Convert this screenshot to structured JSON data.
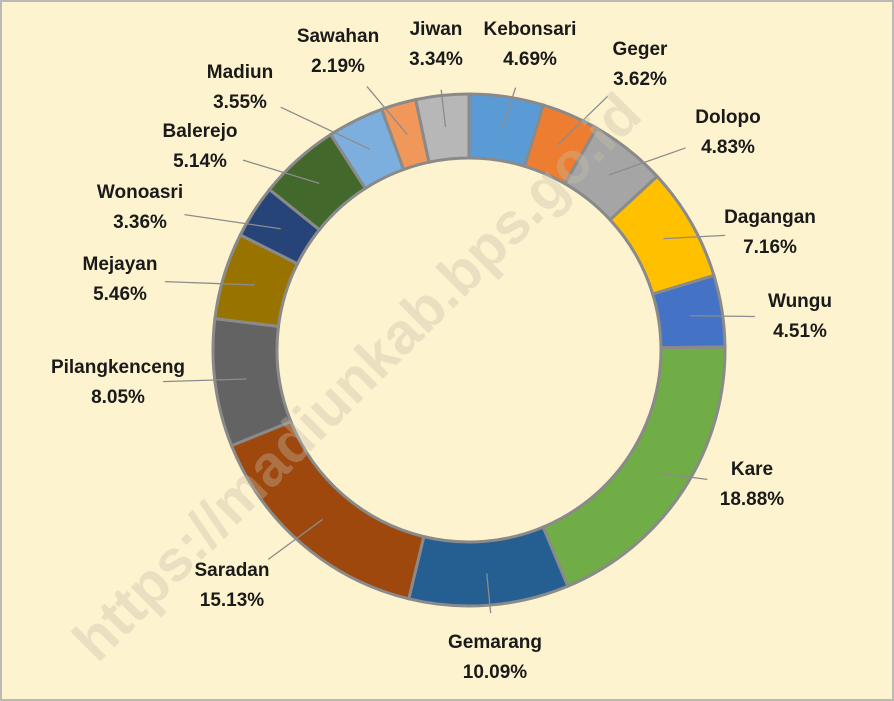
{
  "chart_data": {
    "type": "donut",
    "categories": [
      "Kebonsari",
      "Geger",
      "Dolopo",
      "Dagangan",
      "Wungu",
      "Kare",
      "Gemarang",
      "Saradan",
      "Pilangkenceng",
      "Mejayan",
      "Wonoasri",
      "Balerejo",
      "Madiun",
      "Sawahan",
      "Jiwan"
    ],
    "values": [
      4.69,
      3.62,
      4.83,
      7.16,
      4.51,
      18.88,
      10.09,
      15.13,
      8.05,
      5.46,
      3.36,
      5.14,
      3.55,
      2.19,
      3.34
    ],
    "value_labels": [
      "4.69%",
      "3.62%",
      "4.83%",
      "7.16%",
      "4.51%",
      "18.88%",
      "10.09%",
      "15.13%",
      "8.05%",
      "5.46%",
      "3.36%",
      "5.14%",
      "3.55%",
      "2.19%",
      "3.34%"
    ],
    "colors": [
      "#5b9bd5",
      "#ed7d31",
      "#a5a5a5",
      "#ffc000",
      "#4472c4",
      "#70ad47",
      "#255e91",
      "#9e480e",
      "#636363",
      "#997300",
      "#264478",
      "#43682b",
      "#7cafdd",
      "#f1975a",
      "#b7b7b7"
    ],
    "watermark": "https://madiunkab.bps.go.id"
  }
}
